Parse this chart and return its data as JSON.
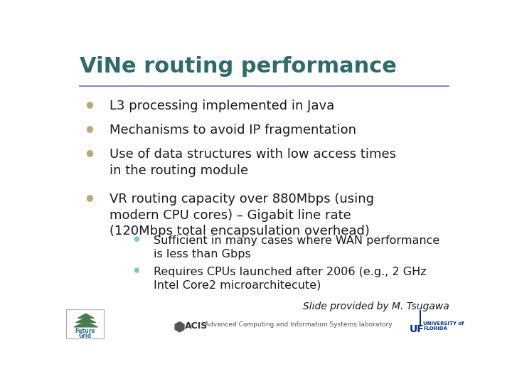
{
  "title": "ViNe routing performance",
  "title_color": "#2E6B6B",
  "background_color": "#FFFFFF",
  "bullet_color": "#B8AA7A",
  "sub_bullet_color": "#7EC8D0",
  "text_color": "#1A1A1A",
  "bullets": [
    "L3 processing implemented in Java",
    "Mechanisms to avoid IP fragmentation",
    "Use of data structures with low access times\nin the routing module",
    "VR routing capacity over 880Mbps (using\nmodern CPU cores) – Gigabit line rate\n(120Mbps total encapsulation overhead)"
  ],
  "sub_bullets": [
    "Sufficient in many cases where WAN performance\nis less than Gbps",
    "Requires CPUs launched after 2006 (e.g., 2 GHz\nIntel Core2 microarchitecute)"
  ],
  "footer_text": "Slide provided by M. Tsugawa",
  "footer_lab": "Advanced Computing and Information Systems laboratory",
  "footer_acis": "ACIS",
  "divider_color": "#8888CC",
  "title_fontsize": 22,
  "bullet_fontsize": 13,
  "sub_bullet_fontsize": 11.5,
  "footer_fontsize": 10
}
